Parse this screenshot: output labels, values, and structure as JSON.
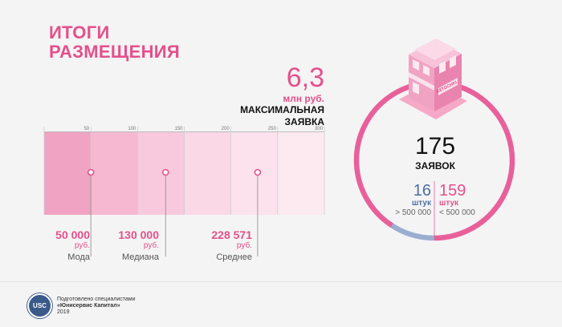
{
  "header": {
    "title_line1": "ИТОГИ",
    "title_line2": "РАЗМЕЩЕНИЯ"
  },
  "max_block": {
    "value": "6,3",
    "unit": "млн руб.",
    "label_line1": "МАКСИМАЛЬНАЯ",
    "label_line2": "ЗАЯВКА"
  },
  "stats": [
    {
      "value": "50 000",
      "unit": "руб.",
      "label": "Мода"
    },
    {
      "value": "130 000",
      "unit": "руб.",
      "label": "Медиана"
    },
    {
      "value": "228 571",
      "unit": "руб.",
      "label": "Среднее"
    }
  ],
  "ring": {
    "total": "175",
    "total_label": "ЗАЯВОК",
    "left_value": "16",
    "left_unit": "штук",
    "left_caption": "> 500 000",
    "right_value": "159",
    "right_unit": "штук",
    "right_caption": "< 500 000"
  },
  "building": {
    "sign": "K$TOCHKI"
  },
  "footer": {
    "logo_text": "USC",
    "line1": "Подготовлено специалистами",
    "line2": "«Юнисервис Капитал»",
    "line3": "2019"
  },
  "colors": {
    "accent": "#e4508c",
    "blue": "#9aaed0",
    "ring": "#e8609a"
  },
  "chart_data": [
    {
      "type": "bar",
      "title": "",
      "xlim": [
        0,
        300
      ],
      "ticks": [
        "50",
        "100",
        "150",
        "200",
        "250",
        "300"
      ],
      "segments": [
        {
          "from": 0,
          "to": 50
        },
        {
          "from": 50,
          "to": 100
        },
        {
          "from": 100,
          "to": 150
        },
        {
          "from": 150,
          "to": 200
        },
        {
          "from": 200,
          "to": 250
        },
        {
          "from": 250,
          "to": 300
        }
      ],
      "markers": [
        {
          "name": "Мода",
          "value": 50
        },
        {
          "name": "Медиана",
          "value": 130
        },
        {
          "name": "Среднее",
          "value": 228.571
        }
      ]
    },
    {
      "type": "pie",
      "total": 175,
      "slices": [
        {
          "label": "> 500 000",
          "value": 16
        },
        {
          "label": "< 500 000",
          "value": 159
        }
      ]
    }
  ]
}
